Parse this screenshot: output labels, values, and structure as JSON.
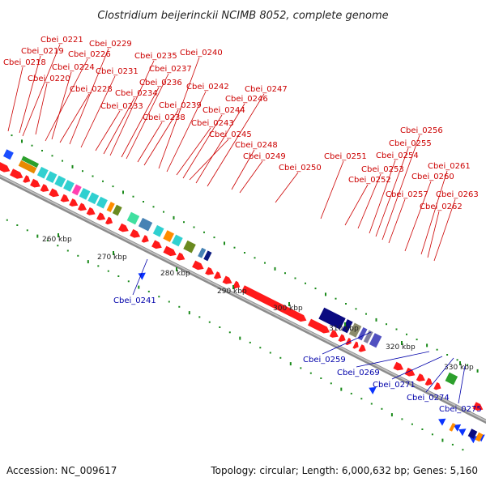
{
  "title": "Clostridium beijerinckii NCIMB 8052, complete genome",
  "footer": {
    "accession": "Accession: NC_009617",
    "topology": "Topology: circular; Length: 6,000,632 bp; Genes: 5,160"
  },
  "colors": {
    "forward_gene": "#ff1a1a",
    "reverse_gene": "#0a33ff",
    "backbone": "#a6a6a6",
    "tick": "#1a8a1a",
    "label_forward": "#cc0000",
    "label_reverse": "#0000aa"
  },
  "scale_ticks": [
    "260 kbp",
    "270 kbp",
    "280 kbp",
    "290 kbp",
    "300 kbp",
    "310 kbp",
    "320 kbp",
    "330 kbp"
  ],
  "labels_forward": [
    "Cbei_0218",
    "Cbei_0219",
    "Cbei_0220",
    "Cbei_0221",
    "Cbei_0224",
    "Cbei_0226",
    "Cbei_0228",
    "Cbei_0229",
    "Cbei_0231",
    "Cbei_0233",
    "Cbei_0234",
    "Cbei_0235",
    "Cbei_0236",
    "Cbei_0237",
    "Cbei_0238",
    "Cbei_0239",
    "Cbei_0240",
    "Cbei_0242",
    "Cbei_0243",
    "Cbei_0244",
    "Cbei_0245",
    "Cbei_0246",
    "Cbei_0247",
    "Cbei_0248",
    "Cbei_0249",
    "Cbei_0250",
    "Cbei_0251",
    "Cbei_0252",
    "Cbei_0253",
    "Cbei_0254",
    "Cbei_0255",
    "Cbei_0256",
    "Cbei_0257",
    "Cbei_0260",
    "Cbei_0261",
    "Cbei_0262",
    "Cbei_0263"
  ],
  "labels_reverse": [
    "Cbei_0241",
    "Cbei_0259",
    "Cbei_0269",
    "Cbei_0271",
    "Cbei_0274",
    "Cbei_0275"
  ]
}
